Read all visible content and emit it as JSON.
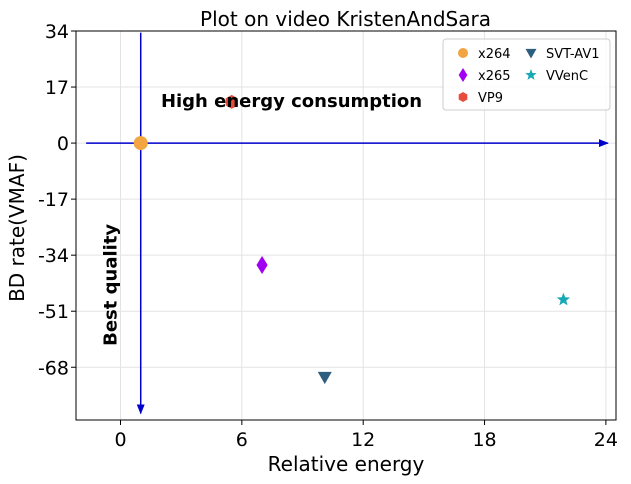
{
  "chart_data": {
    "type": "scatter",
    "title": "Plot on video KristenAndSara",
    "xlabel": "Relative energy",
    "ylabel": "BD rate(VMAF)",
    "xlim": [
      -2.2,
      24.5
    ],
    "ylim": [
      -84,
      34
    ],
    "xticks": [
      0,
      6,
      12,
      18,
      24
    ],
    "yticks": [
      34,
      17,
      0,
      -17,
      -34,
      -51,
      -68
    ],
    "grid": true,
    "legend_placement": "top-right",
    "legend_columns": 2,
    "series": [
      {
        "name": "x264",
        "marker": "circle",
        "color": "#f2a541",
        "x": [
          1.0
        ],
        "y": [
          0.0
        ]
      },
      {
        "name": "x265",
        "marker": "diamond",
        "color": "#a100f2",
        "x": [
          7.0
        ],
        "y": [
          -37.0
        ]
      },
      {
        "name": "VP9",
        "marker": "hexagon",
        "color": "#e74c3c",
        "x": [
          5.5
        ],
        "y": [
          12.5
        ]
      },
      {
        "name": "SVT-AV1",
        "marker": "triangle-down",
        "color": "#2c5f7f",
        "x": [
          10.1
        ],
        "y": [
          -71.0
        ]
      },
      {
        "name": "VVenC",
        "marker": "star",
        "color": "#17a8b5",
        "x": [
          21.9
        ],
        "y": [
          -47.5
        ]
      }
    ],
    "reference_lines": {
      "color": "#0000cc",
      "horizontal": {
        "y": 0,
        "x_from": -1.7,
        "x_to": 24.1
      },
      "vertical": {
        "x": 1.0,
        "y_from": 33.5,
        "y_to": -82
      }
    },
    "annotations": [
      {
        "text": "High energy consumption",
        "x": 2.0,
        "y": 11.0,
        "rotation": 0
      },
      {
        "text": "Best quality",
        "x": -0.2,
        "y": -43.0,
        "rotation": -90
      }
    ]
  }
}
